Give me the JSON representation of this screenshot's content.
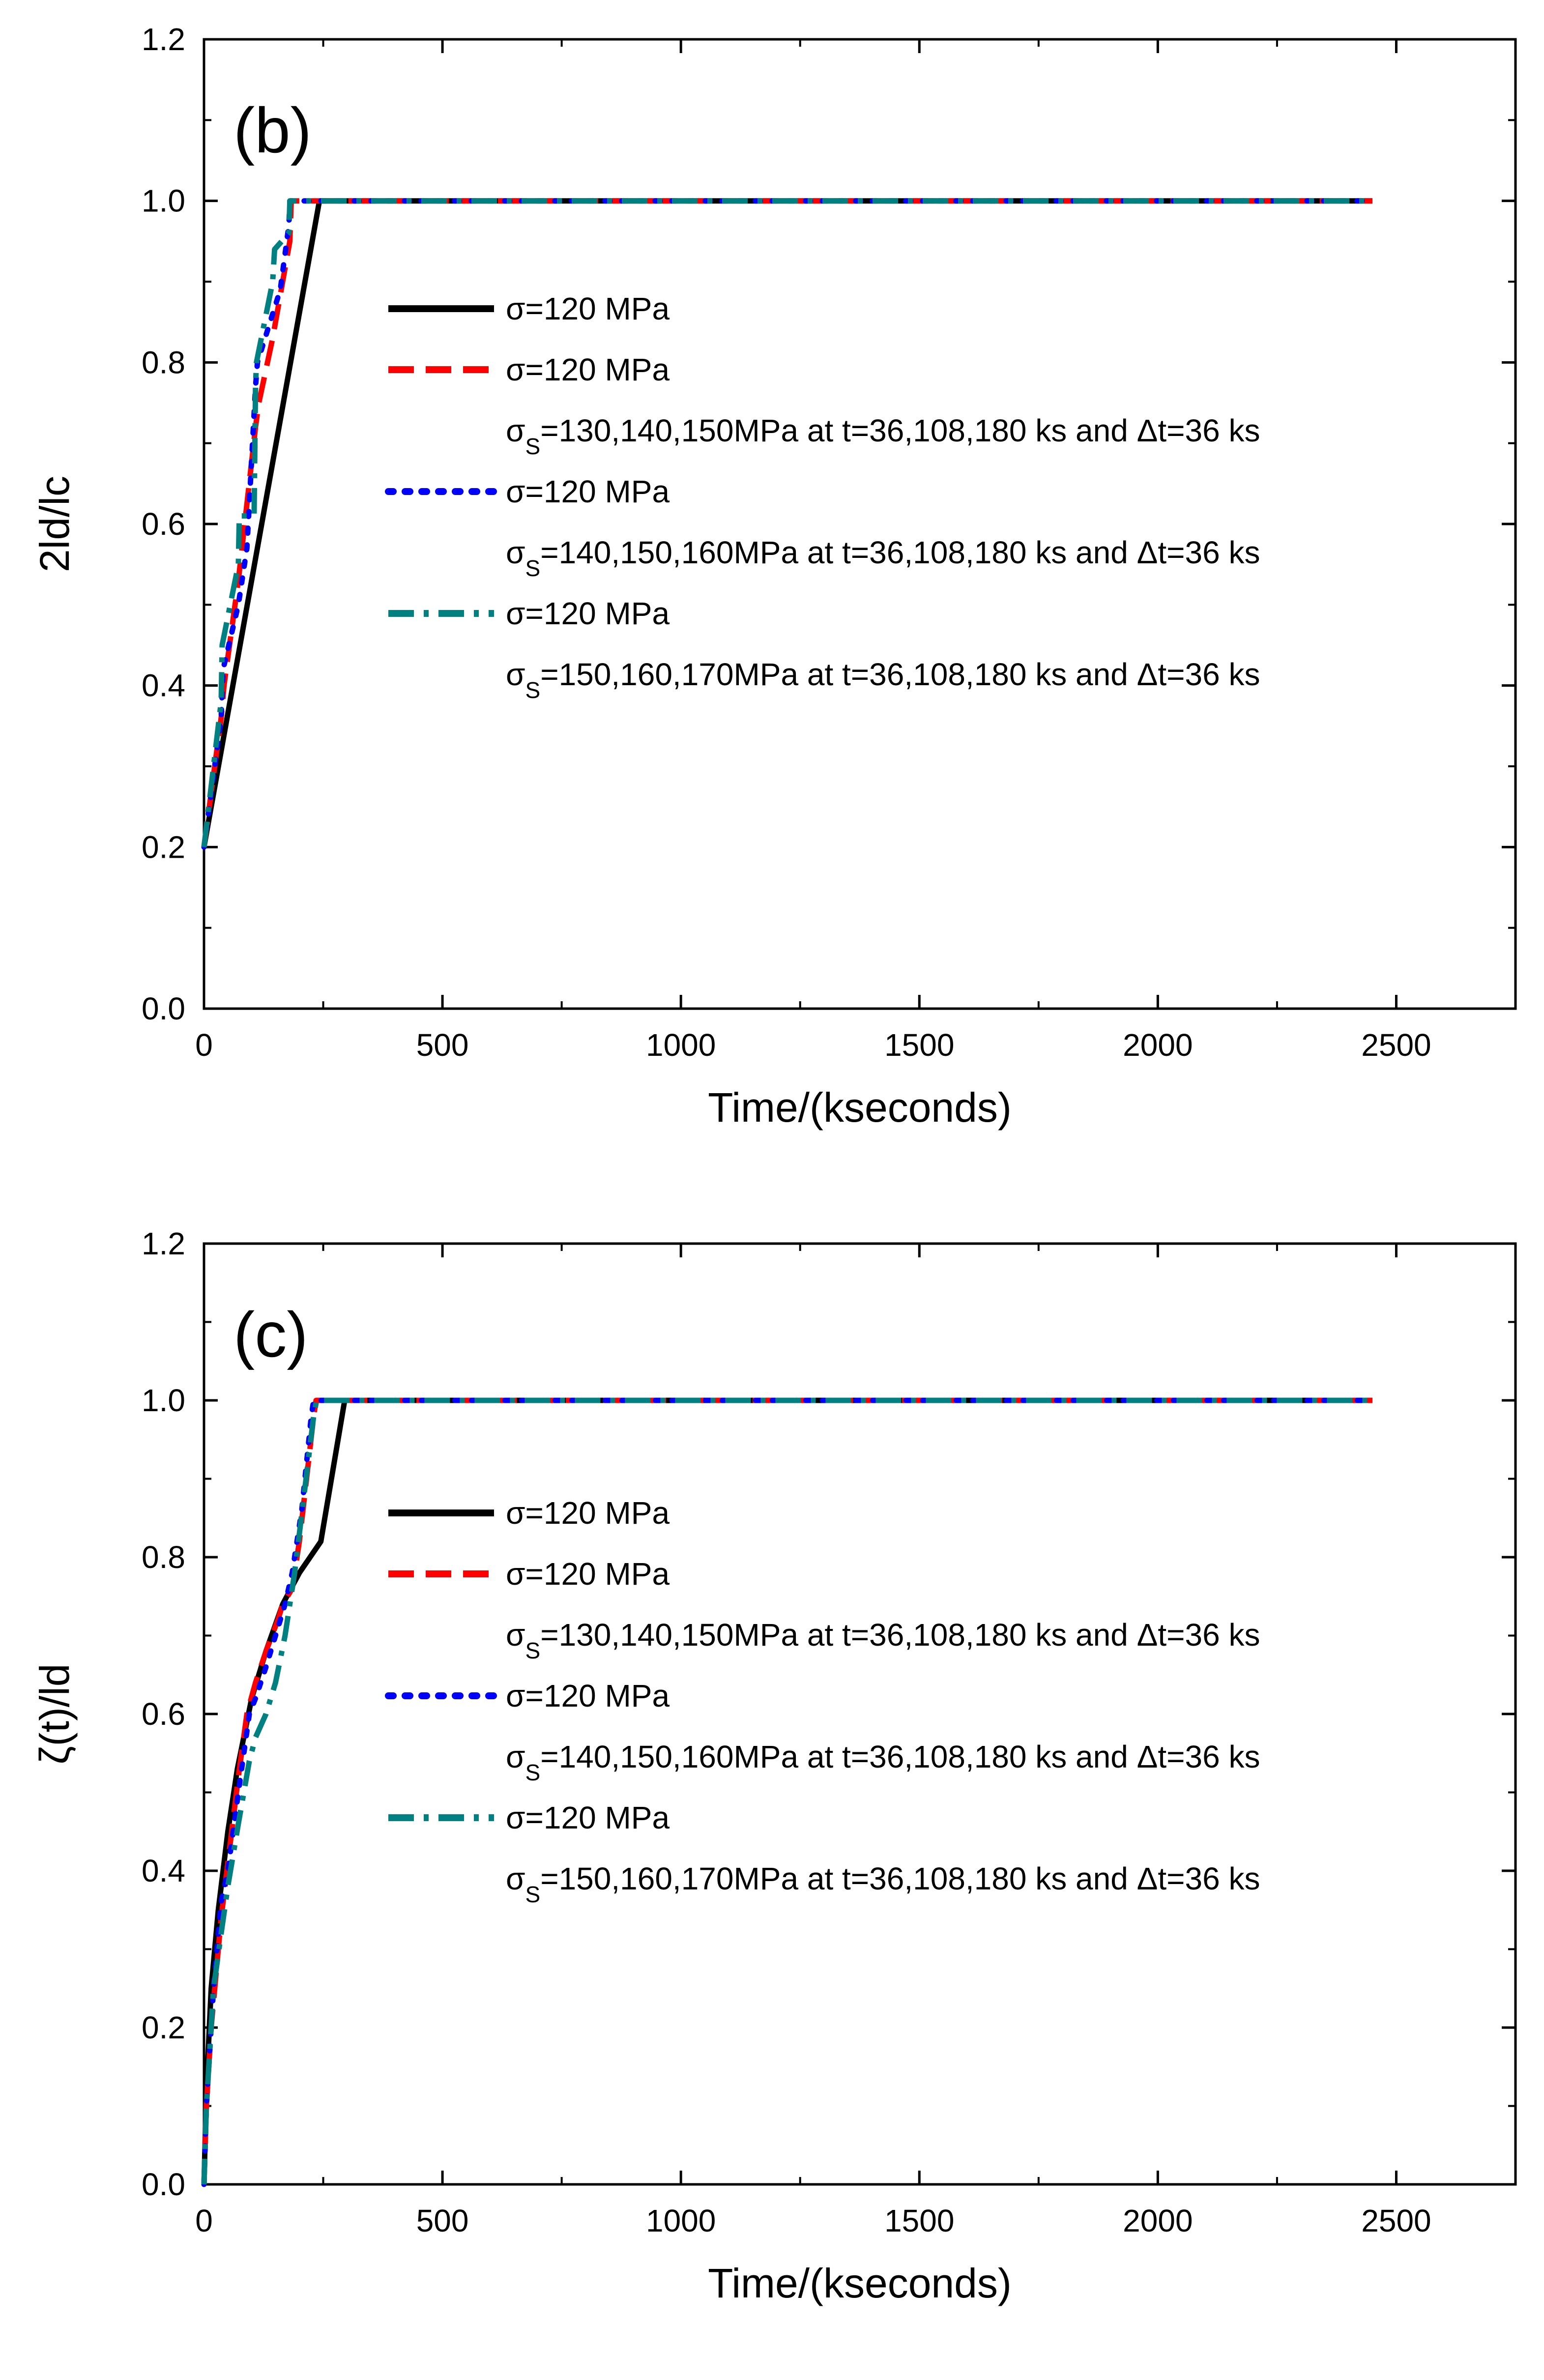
{
  "chart_data": [
    {
      "type": "line",
      "panel_label": "(b)",
      "xlabel": "Time/(kseconds)",
      "ylabel": "2ld/lc",
      "xlim": [
        0,
        2750
      ],
      "ylim": [
        0.0,
        1.2
      ],
      "x_ticks": [
        "0",
        "500",
        "1000",
        "1500",
        "2000",
        "2500"
      ],
      "y_ticks": [
        "0.0",
        "0.2",
        "0.4",
        "0.6",
        "0.8",
        "1.0",
        "1.2"
      ],
      "series": [
        {
          "name": "σ=120 MPa",
          "extra": null,
          "style": "solid",
          "color": "#000000",
          "points": [
            [
              0,
              0.2
            ],
            [
              242,
              1.0
            ],
            [
              2450,
              1.0
            ]
          ]
        },
        {
          "name": "σ=120 MPa",
          "extra": {
            "pre": "σ",
            "sub": "S",
            "text": "=130,140,150MPa at t=36,108,180 ks and Δt=36 ks"
          },
          "style": "dash",
          "color": "#ff0000",
          "points": [
            [
              0,
              0.2
            ],
            [
              36,
              0.36
            ],
            [
              42,
              0.4
            ],
            [
              72,
              0.53
            ],
            [
              108,
              0.72
            ],
            [
              115,
              0.75
            ],
            [
              144,
              0.83
            ],
            [
              180,
              0.95
            ],
            [
              183,
              1.0
            ],
            [
              2450,
              1.0
            ]
          ]
        },
        {
          "name": "σ=120 MPa",
          "extra": {
            "pre": "σ",
            "sub": "S",
            "text": "=140,150,160MPa at t=36,108,180 ks and Δt=36 ks"
          },
          "style": "dot",
          "color": "#0000ff",
          "points": [
            [
              0,
              0.2
            ],
            [
              36,
              0.36
            ],
            [
              40,
              0.42
            ],
            [
              72,
              0.5
            ],
            [
              90,
              0.57
            ],
            [
              108,
              0.77
            ],
            [
              112,
              0.8
            ],
            [
              144,
              0.86
            ],
            [
              160,
              0.89
            ],
            [
              178,
              0.97
            ],
            [
              180,
              1.0
            ],
            [
              2450,
              1.0
            ]
          ]
        },
        {
          "name": "σ=120 MPa",
          "extra": {
            "pre": "σ",
            "sub": "S",
            "text": "=150,160,170MPa at t=36,108,180 ks and Δt=36 ks"
          },
          "style": "dashdot",
          "color": "#008080",
          "points": [
            [
              0,
              0.2
            ],
            [
              36,
              0.38
            ],
            [
              38,
              0.45
            ],
            [
              72,
              0.55
            ],
            [
              74,
              0.61
            ],
            [
              105,
              0.61
            ],
            [
              108,
              0.77
            ],
            [
              110,
              0.8
            ],
            [
              144,
              0.9
            ],
            [
              148,
              0.94
            ],
            [
              178,
              0.96
            ],
            [
              180,
              1.0
            ],
            [
              2450,
              1.0
            ]
          ]
        }
      ]
    },
    {
      "type": "line",
      "panel_label": "(c)",
      "xlabel": "Time/(kseconds)",
      "ylabel": "ζ(t)/ld",
      "xlim": [
        0,
        2750
      ],
      "ylim": [
        0.0,
        1.2
      ],
      "x_ticks": [
        "0",
        "500",
        "1000",
        "1500",
        "2000",
        "2500"
      ],
      "y_ticks": [
        "0.0",
        "0.2",
        "0.4",
        "0.6",
        "0.8",
        "1.0",
        "1.2"
      ],
      "series": [
        {
          "name": "σ=120 MPa",
          "extra": null,
          "style": "solid",
          "color": "#000000",
          "points": [
            [
              0,
              0
            ],
            [
              5,
              0.12
            ],
            [
              15,
              0.25
            ],
            [
              30,
              0.35
            ],
            [
              50,
              0.45
            ],
            [
              70,
              0.53
            ],
            [
              100,
              0.62
            ],
            [
              130,
              0.68
            ],
            [
              165,
              0.74
            ],
            [
              200,
              0.78
            ],
            [
              245,
              0.82
            ],
            [
              295,
              1.0
            ],
            [
              2450,
              1.0
            ]
          ]
        },
        {
          "name": "σ=120 MPa",
          "extra": {
            "pre": "σ",
            "sub": "S",
            "text": "=130,140,150MPa at t=36,108,180 ks and Δt=36 ks"
          },
          "style": "dash",
          "color": "#ff0000",
          "points": [
            [
              0,
              0
            ],
            [
              5,
              0.1
            ],
            [
              15,
              0.2
            ],
            [
              36,
              0.34
            ],
            [
              48,
              0.4
            ],
            [
              72,
              0.52
            ],
            [
              90,
              0.6
            ],
            [
              108,
              0.64
            ],
            [
              130,
              0.68
            ],
            [
              155,
              0.72
            ],
            [
              165,
              0.74
            ],
            [
              185,
              0.76
            ],
            [
              200,
              0.82
            ],
            [
              215,
              0.9
            ],
            [
              230,
              0.98
            ],
            [
              235,
              1.0
            ],
            [
              2450,
              1.0
            ]
          ]
        },
        {
          "name": "σ=120 MPa",
          "extra": {
            "pre": "σ",
            "sub": "S",
            "text": "=140,150,160MPa at t=36,108,180 ks and Δt=36 ks"
          },
          "style": "dot",
          "color": "#0000ff",
          "points": [
            [
              0,
              0
            ],
            [
              5,
              0.1
            ],
            [
              20,
              0.25
            ],
            [
              36,
              0.36
            ],
            [
              50,
              0.4
            ],
            [
              72,
              0.5
            ],
            [
              95,
              0.6
            ],
            [
              108,
              0.62
            ],
            [
              130,
              0.66
            ],
            [
              150,
              0.7
            ],
            [
              170,
              0.74
            ],
            [
              185,
              0.78
            ],
            [
              205,
              0.86
            ],
            [
              225,
              0.98
            ],
            [
              230,
              1.0
            ],
            [
              2450,
              1.0
            ]
          ]
        },
        {
          "name": "σ=120 MPa",
          "extra": {
            "pre": "σ",
            "sub": "S",
            "text": "=150,160,170MPa at t=36,108,180 ks and Δt=36 ks"
          },
          "style": "dashdot",
          "color": "#008080",
          "points": [
            [
              0,
              0
            ],
            [
              5,
              0.1
            ],
            [
              20,
              0.25
            ],
            [
              36,
              0.32
            ],
            [
              50,
              0.38
            ],
            [
              72,
              0.46
            ],
            [
              95,
              0.54
            ],
            [
              108,
              0.57
            ],
            [
              130,
              0.6
            ],
            [
              150,
              0.64
            ],
            [
              170,
              0.7
            ],
            [
              190,
              0.78
            ],
            [
              210,
              0.88
            ],
            [
              230,
              0.98
            ],
            [
              236,
              1.0
            ],
            [
              2450,
              1.0
            ]
          ]
        }
      ]
    }
  ]
}
